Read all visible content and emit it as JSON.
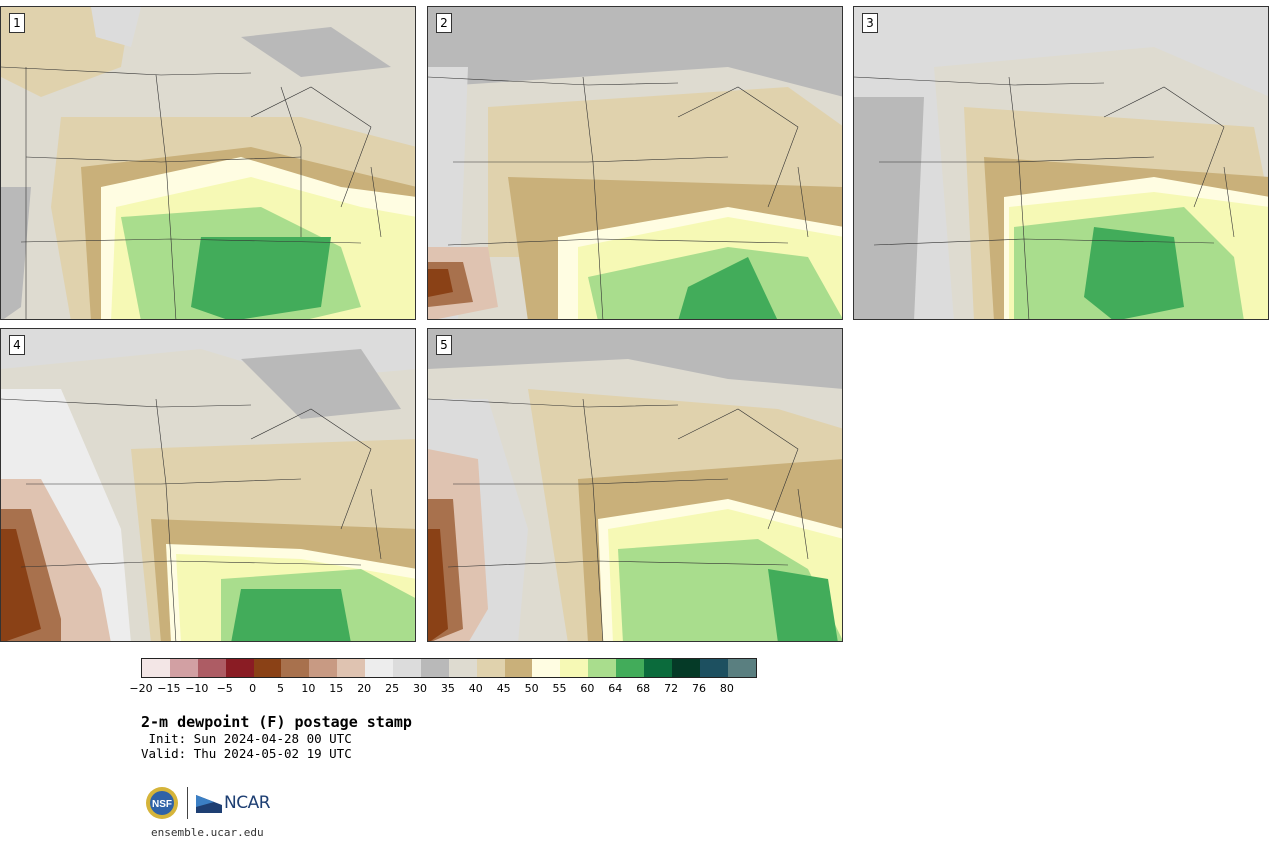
{
  "title": "2-m dewpoint (F) postage stamp",
  "init_line": " Init: Sun 2024-04-28 00 UTC",
  "valid_line": "Valid: Thu 2024-05-02 19 UTC",
  "panels": [
    {
      "label": "1"
    },
    {
      "label": "2"
    },
    {
      "label": "3"
    },
    {
      "label": "4"
    },
    {
      "label": "5"
    }
  ],
  "colorbar": {
    "colors": [
      "#f3e6e6",
      "#d2a0a3",
      "#ad5c64",
      "#8a1c24",
      "#8a4116",
      "#a8714d",
      "#c89a83",
      "#dfc3b1",
      "#ededed",
      "#dcdcdc",
      "#b9b9b9",
      "#dedbd0",
      "#e0d2ad",
      "#c9b07a",
      "#fffde2",
      "#f6f9b5",
      "#a9dd8d",
      "#42ac5a",
      "#0b6b3c",
      "#053a27",
      "#1d5060",
      "#5a7f80"
    ],
    "tick_labels": [
      "−20",
      "−15",
      "−10",
      "−5",
      "0",
      "5",
      "10",
      "15",
      "20",
      "25",
      "30",
      "35",
      "40",
      "45",
      "50",
      "55",
      "60",
      "64",
      "68",
      "72",
      "76",
      "80"
    ]
  },
  "logo": {
    "nsf_text": "NSF",
    "ncar_text": "NCAR"
  },
  "footer_url": "ensemble.ucar.edu"
}
